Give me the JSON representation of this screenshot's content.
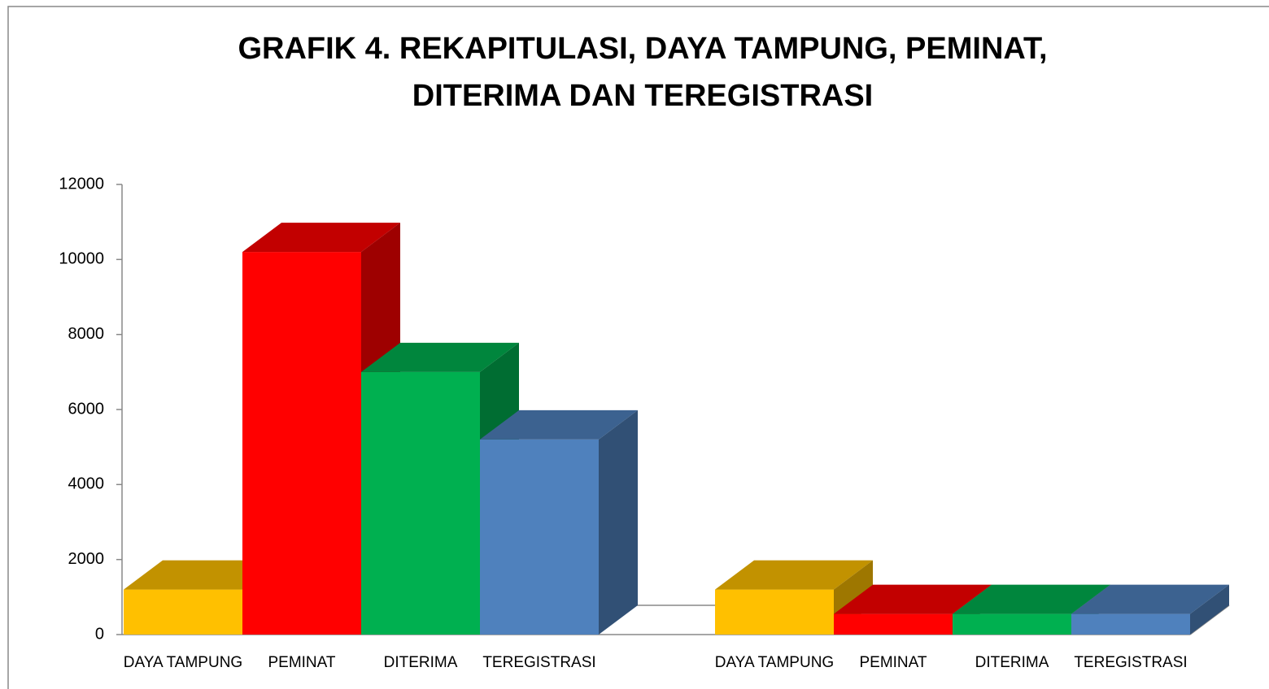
{
  "chart_data": {
    "type": "bar3d",
    "title": [
      "GRAFIK 4. REKAPITULASI, DAYA TAMPUNG, PEMINAT,",
      "DITERIMA DAN TEREGISTRASI"
    ],
    "categories": [
      "DAYA TAMPUNG",
      "PEMINAT",
      "DITERIMA",
      "TEREGISTRASI",
      "DAYA TAMPUNG",
      "PEMINAT",
      "DITERIMA",
      "TEREGISTRASI"
    ],
    "values": [
      1200,
      10200,
      7000,
      5200,
      1200,
      550,
      550,
      550
    ],
    "colors": [
      "#ffc000",
      "#ff0000",
      "#00b050",
      "#4f81bd",
      "#ffc000",
      "#ff0000",
      "#00b050",
      "#4f81bd"
    ],
    "ylim": [
      0,
      12000
    ],
    "yticks": [
      0,
      2000,
      4000,
      6000,
      8000,
      10000,
      12000
    ]
  }
}
